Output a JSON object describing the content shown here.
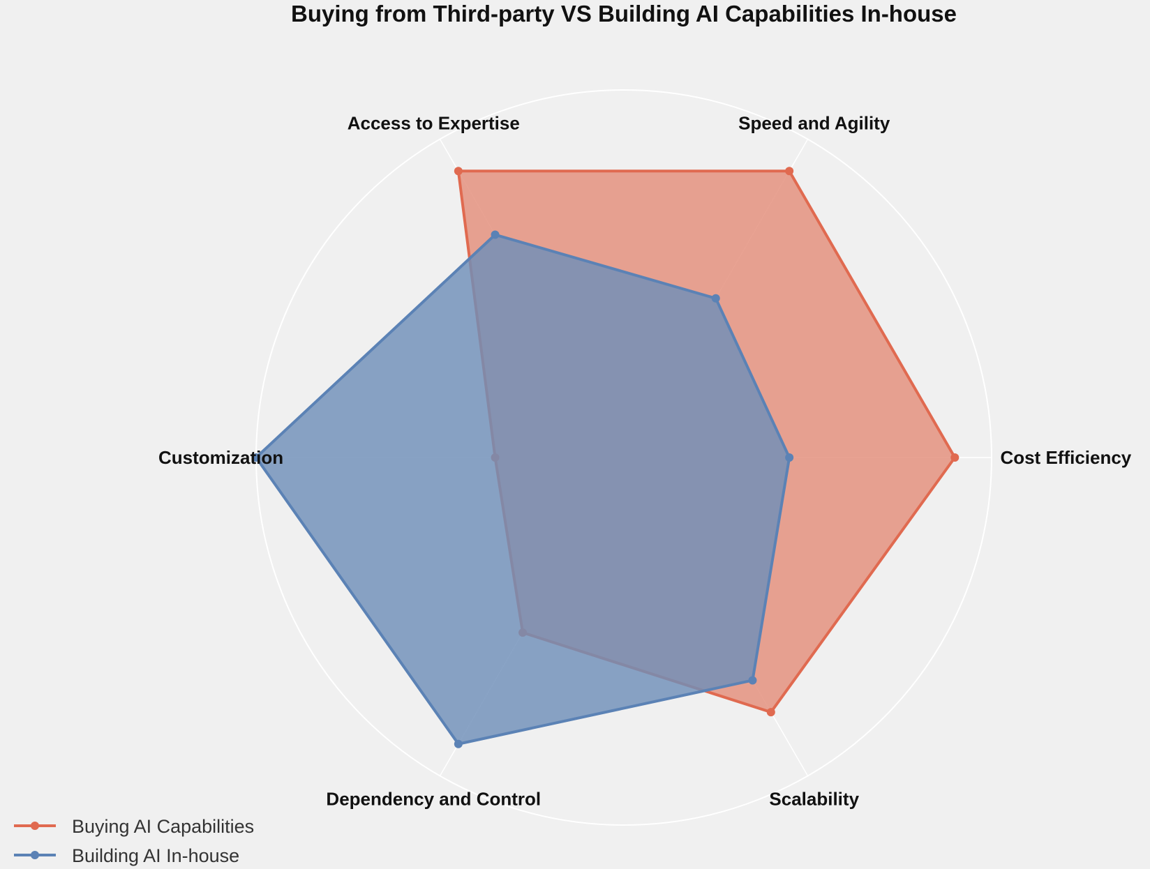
{
  "chart_data": {
    "type": "radar",
    "title": "Buying from Third-party VS Building AI Capabilities In-house",
    "categories": [
      "Cost Efficiency",
      "Speed and Agility",
      "Access to Expertise",
      "Customization",
      "Dependency and Control",
      "Scalability"
    ],
    "rmax": 10,
    "grid": true,
    "legend": "bottom-left",
    "series": [
      {
        "name": "Buying AI Capabilities",
        "color": "#e06a50",
        "fill": "#e38d7a",
        "values": [
          9,
          9,
          9,
          3.5,
          5.5,
          8
        ]
      },
      {
        "name": "Building AI In-house",
        "color": "#5b82b5",
        "fill": "#6f8fb8",
        "values": [
          4.5,
          5,
          7,
          10,
          9,
          7
        ]
      }
    ]
  }
}
